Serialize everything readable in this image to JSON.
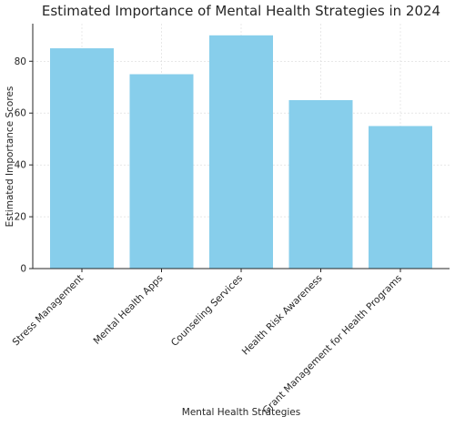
{
  "chart_data": {
    "type": "bar",
    "title": "Estimated Importance of Mental Health Strategies in 2024",
    "xlabel": "Mental Health Strategies",
    "ylabel": "Estimated Importance Scores",
    "categories": [
      "Stress Management",
      "Mental Health Apps",
      "Counseling Services",
      "Health Risk Awareness",
      "Grant Management for Health Programs"
    ],
    "values": [
      85,
      75,
      90,
      65,
      55
    ],
    "ylim": [
      0,
      94.5
    ],
    "yticks": [
      0,
      20,
      40,
      60,
      80
    ],
    "grid": true,
    "bar_color": "#87ceeb",
    "legend": "none"
  }
}
